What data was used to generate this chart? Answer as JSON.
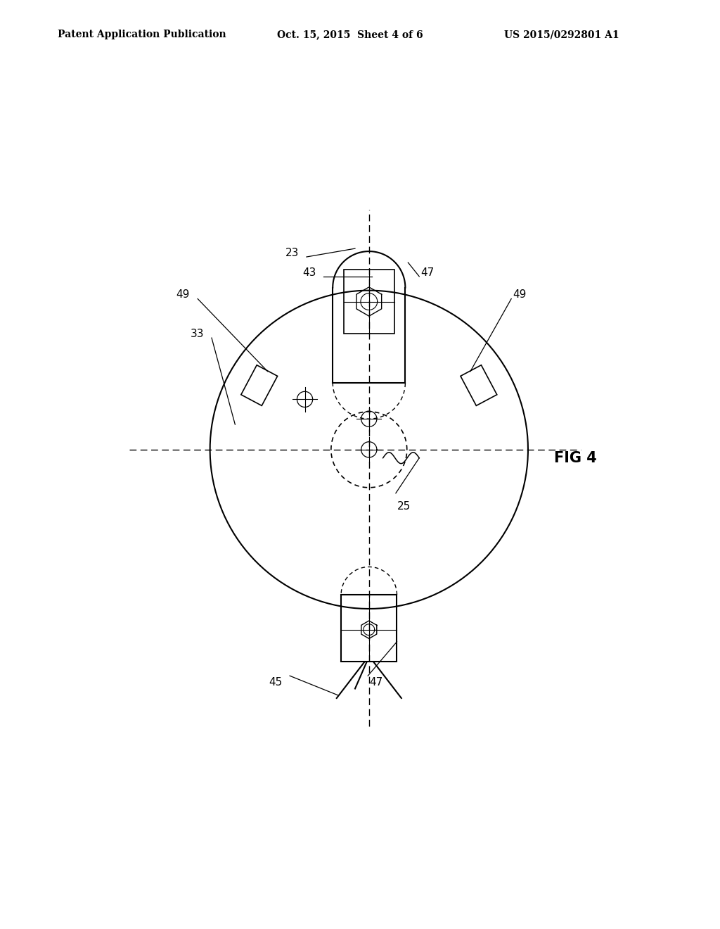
{
  "bg_color": "#ffffff",
  "line_color": "#000000",
  "header_left": "Patent Application Publication",
  "header_mid": "Oct. 15, 2015  Sheet 4 of 6",
  "header_right": "US 2015/0292801 A1",
  "fig_label": "FIG 4"
}
